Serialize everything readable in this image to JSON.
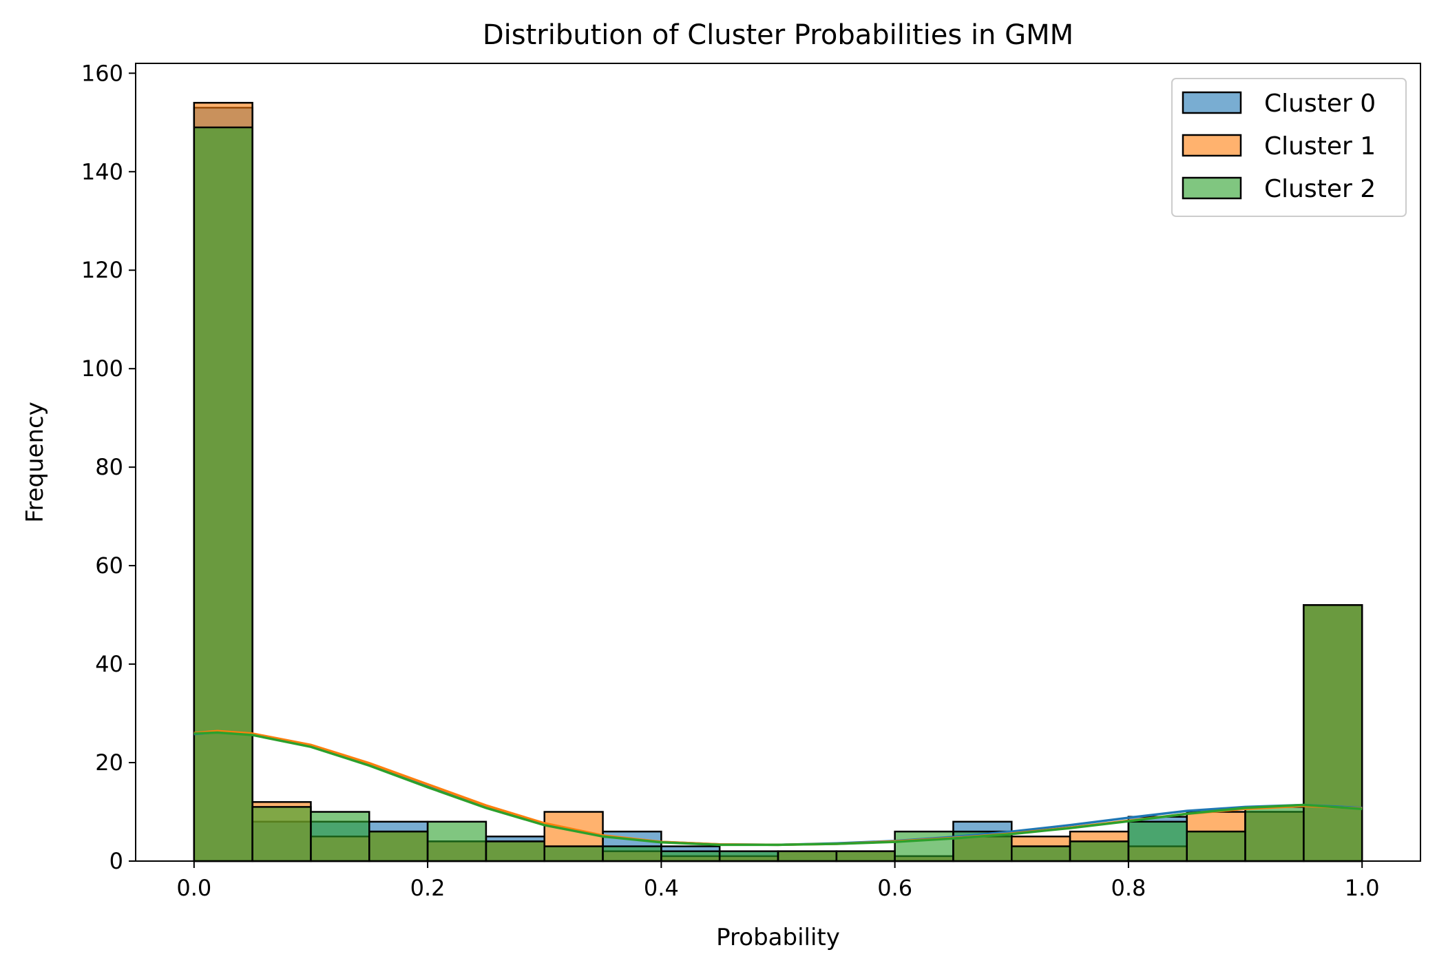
{
  "chart_data": {
    "type": "bar",
    "title": "Distribution of Cluster Probabilities in GMM",
    "xlabel": "Probability",
    "ylabel": "Frequency",
    "xlim": [
      -0.05,
      1.05
    ],
    "ylim": [
      0,
      162
    ],
    "x_ticks": [
      0.0,
      0.2,
      0.4,
      0.6,
      0.8,
      1.0
    ],
    "x_tick_labels": [
      "0.0",
      "0.2",
      "0.4",
      "0.6",
      "0.8",
      "1.0"
    ],
    "y_ticks": [
      0,
      20,
      40,
      60,
      80,
      100,
      120,
      140,
      160
    ],
    "y_tick_labels": [
      "0",
      "20",
      "40",
      "60",
      "80",
      "100",
      "120",
      "140",
      "160"
    ],
    "grid": false,
    "legend_position": "top-right",
    "bin_edges": [
      0.0,
      0.05,
      0.1,
      0.15,
      0.2,
      0.25,
      0.3,
      0.35,
      0.4,
      0.45,
      0.5,
      0.55,
      0.6,
      0.65,
      0.7,
      0.75,
      0.8,
      0.85,
      0.9,
      0.95,
      1.0
    ],
    "series": [
      {
        "name": "Cluster 0",
        "color": "#1f77b4",
        "values": [
          153,
          8,
          8,
          8,
          4,
          5,
          3,
          6,
          3,
          2,
          2,
          2,
          1,
          8,
          3,
          4,
          9,
          6,
          10,
          52
        ],
        "kde": [
          [
            0.0,
            25.8
          ],
          [
            0.02,
            26.2
          ],
          [
            0.05,
            25.7
          ],
          [
            0.1,
            23.3
          ],
          [
            0.15,
            19.6
          ],
          [
            0.2,
            15.2
          ],
          [
            0.25,
            11.0
          ],
          [
            0.3,
            7.5
          ],
          [
            0.35,
            5.1
          ],
          [
            0.4,
            3.9
          ],
          [
            0.45,
            3.4
          ],
          [
            0.5,
            3.3
          ],
          [
            0.55,
            3.6
          ],
          [
            0.6,
            4.1
          ],
          [
            0.65,
            4.9
          ],
          [
            0.7,
            6.0
          ],
          [
            0.75,
            7.3
          ],
          [
            0.8,
            8.8
          ],
          [
            0.85,
            10.2
          ],
          [
            0.9,
            11.0
          ],
          [
            0.95,
            11.4
          ],
          [
            1.0,
            10.8
          ]
        ]
      },
      {
        "name": "Cluster 1",
        "color": "#ff7f0e",
        "values": [
          154,
          12,
          5,
          6,
          4,
          4,
          10,
          2,
          1,
          1,
          2,
          2,
          1,
          5,
          5,
          6,
          3,
          10,
          10,
          52
        ],
        "kde": [
          [
            0.0,
            26.0
          ],
          [
            0.02,
            26.4
          ],
          [
            0.05,
            25.9
          ],
          [
            0.1,
            23.6
          ],
          [
            0.15,
            19.9
          ],
          [
            0.2,
            15.6
          ],
          [
            0.25,
            11.3
          ],
          [
            0.3,
            7.7
          ],
          [
            0.35,
            5.2
          ],
          [
            0.4,
            3.9
          ],
          [
            0.45,
            3.4
          ],
          [
            0.5,
            3.3
          ],
          [
            0.55,
            3.5
          ],
          [
            0.6,
            4.0
          ],
          [
            0.65,
            4.7
          ],
          [
            0.7,
            5.6
          ],
          [
            0.75,
            6.8
          ],
          [
            0.8,
            8.2
          ],
          [
            0.85,
            9.6
          ],
          [
            0.9,
            10.6
          ],
          [
            0.95,
            11.2
          ],
          [
            1.0,
            10.7
          ]
        ]
      },
      {
        "name": "Cluster 2",
        "color": "#2ca02c",
        "values": [
          149,
          11,
          10,
          6,
          8,
          4,
          3,
          3,
          2,
          2,
          2,
          2,
          6,
          6,
          3,
          4,
          8,
          6,
          11,
          52
        ],
        "kde": [
          [
            0.0,
            25.9
          ],
          [
            0.02,
            26.1
          ],
          [
            0.05,
            25.6
          ],
          [
            0.1,
            23.2
          ],
          [
            0.15,
            19.4
          ],
          [
            0.2,
            15.0
          ],
          [
            0.25,
            10.8
          ],
          [
            0.3,
            7.3
          ],
          [
            0.35,
            5.0
          ],
          [
            0.4,
            3.8
          ],
          [
            0.45,
            3.3
          ],
          [
            0.5,
            3.3
          ],
          [
            0.55,
            3.5
          ],
          [
            0.6,
            3.9
          ],
          [
            0.65,
            4.6
          ],
          [
            0.7,
            5.5
          ],
          [
            0.75,
            6.7
          ],
          [
            0.8,
            8.1
          ],
          [
            0.85,
            9.6
          ],
          [
            0.9,
            10.8
          ],
          [
            0.95,
            11.4
          ],
          [
            1.0,
            10.6
          ]
        ]
      }
    ]
  }
}
